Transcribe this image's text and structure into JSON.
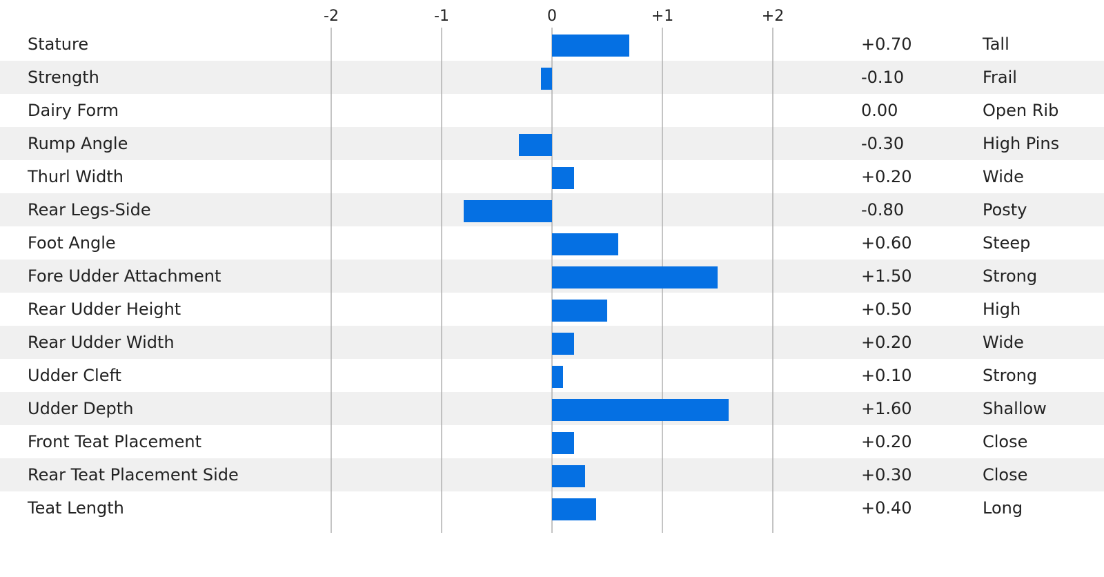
{
  "chart_data": {
    "type": "bar",
    "orientation": "horizontal",
    "x_ticks": [
      "-2",
      "-1",
      "0",
      "+1",
      "+2"
    ],
    "x_tick_values": [
      -2,
      -1,
      0,
      1,
      2
    ],
    "xlim": [
      -2,
      2
    ],
    "grid": true,
    "categories": [
      "Stature",
      "Strength",
      "Dairy Form",
      "Rump Angle",
      "Thurl Width",
      "Rear Legs-Side",
      "Foot Angle",
      "Fore Udder Attachment",
      "Rear Udder Height",
      "Rear Udder Width",
      "Udder Cleft",
      "Udder Depth",
      "Front Teat Placement",
      "Rear Teat Placement Side",
      "Teat Length"
    ],
    "values": [
      0.7,
      -0.1,
      0.0,
      -0.3,
      0.2,
      -0.8,
      0.6,
      1.5,
      0.5,
      0.2,
      0.1,
      1.6,
      0.2,
      0.3,
      0.4
    ],
    "value_labels": [
      "+0.70",
      "-0.10",
      "0.00",
      "-0.30",
      "+0.20",
      "-0.80",
      "+0.60",
      "+1.50",
      "+0.50",
      "+0.20",
      "+0.10",
      "+1.60",
      "+0.20",
      "+0.30",
      "+0.40"
    ],
    "descriptors": [
      "Tall",
      "Frail",
      "Open Rib",
      "High Pins",
      "Wide",
      "Posty",
      "Steep",
      "Strong",
      "High",
      "Wide",
      "Strong",
      "Shallow",
      "Close",
      "Close",
      "Long"
    ]
  },
  "colors": {
    "bar": "#0570e3",
    "stripe": "#f0f0f0",
    "grid": "#b0b0b0",
    "text": "#222222"
  }
}
